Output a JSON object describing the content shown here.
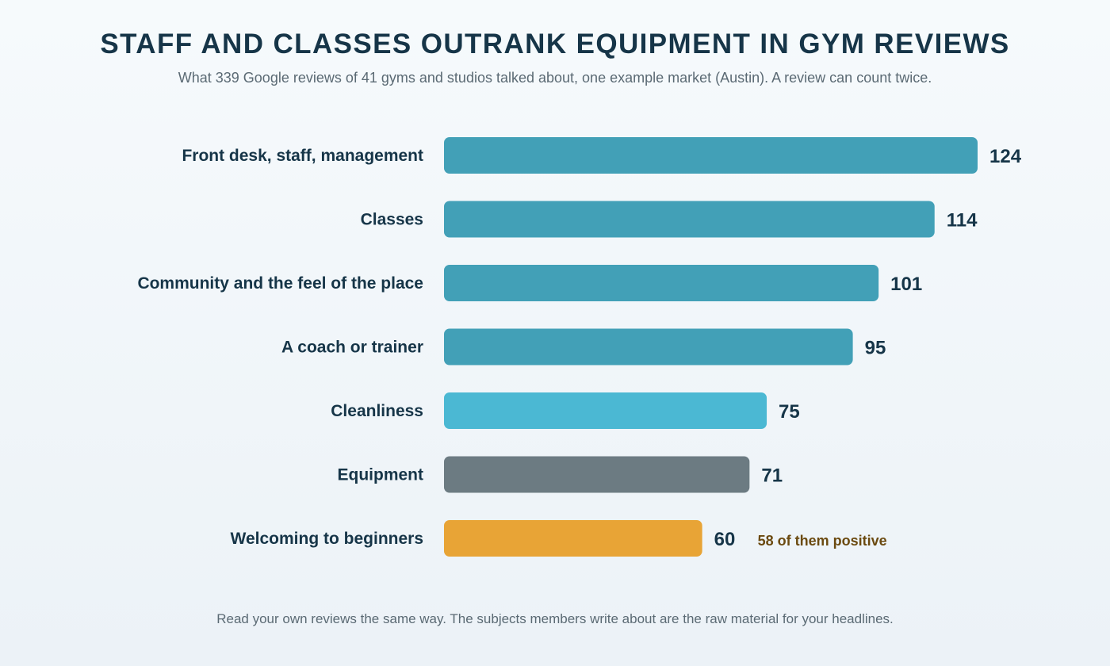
{
  "header": {
    "title": "STAFF AND CLASSES OUTRANK EQUIPMENT IN GYM REVIEWS",
    "subtitle": "What 339 Google reviews of 41 gyms and studios talked about, one example market (Austin). A review can count twice."
  },
  "footer": {
    "text": "Read your own reviews the same way. The subjects members write about are the raw material for your headlines."
  },
  "colors": {
    "people": "#42a0b7",
    "cleanliness": "#4bb8d3",
    "equipment": "#6c7b82",
    "beginners": "#e8a436",
    "label": "#163548",
    "annotation": "#6b4a10"
  },
  "chart_data": {
    "type": "bar",
    "orientation": "horizontal",
    "categories": [
      "Front desk, staff, management",
      "Classes",
      "Community and the feel of the place",
      "A coach or trainer",
      "Cleanliness",
      "Equipment",
      "Welcoming to beginners"
    ],
    "values": [
      124,
      114,
      101,
      95,
      75,
      71,
      60
    ],
    "bar_colors": [
      "people",
      "people",
      "people",
      "people",
      "cleanliness",
      "equipment",
      "beginners"
    ],
    "annotations": [
      {
        "category": "Welcoming to beginners",
        "text": "58 of them positive"
      }
    ],
    "xlim": [
      0,
      124
    ],
    "grid": false,
    "legend": "none"
  }
}
